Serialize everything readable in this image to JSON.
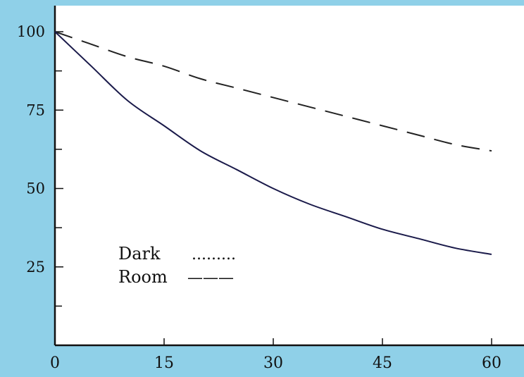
{
  "chart_data": {
    "type": "line",
    "title": "",
    "xlabel": "",
    "ylabel": "",
    "xlim": [
      0,
      60
    ],
    "ylim": [
      0,
      100
    ],
    "x_ticks": [
      0,
      15,
      30,
      45,
      60
    ],
    "y_ticks": [
      25,
      50,
      75,
      100
    ],
    "y_tick_labels": [
      "25",
      "50",
      "75",
      "100"
    ],
    "x_tick_labels": [
      "0",
      "15",
      "30",
      "45",
      "60"
    ],
    "grid": false,
    "legend": {
      "placement": "lower-left"
    },
    "background_color": "#8fd0e8",
    "plot_background_color": "#ffffff",
    "series": [
      {
        "name": "Dark",
        "legend_sample": ".........",
        "style": "dashed",
        "color": "#222222",
        "x": [
          0,
          5,
          10,
          15,
          20,
          25,
          30,
          35,
          40,
          45,
          50,
          55,
          60
        ],
        "y": [
          100,
          96,
          92,
          89,
          85,
          82,
          79,
          76,
          73,
          70,
          67,
          64,
          62
        ]
      },
      {
        "name": "Room",
        "legend_sample": "———",
        "style": "solid",
        "color": "#1a1a4a",
        "x": [
          0,
          5,
          10,
          15,
          20,
          25,
          30,
          35,
          40,
          45,
          50,
          55,
          60
        ],
        "y": [
          100,
          89,
          78,
          70,
          62,
          56,
          50,
          45,
          41,
          37,
          34,
          31,
          29
        ]
      }
    ]
  }
}
